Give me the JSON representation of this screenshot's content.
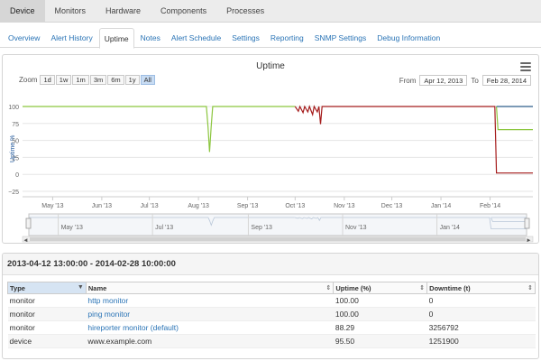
{
  "top_tabs": [
    {
      "label": "Device",
      "active": true
    },
    {
      "label": "Monitors",
      "active": false
    },
    {
      "label": "Hardware",
      "active": false
    },
    {
      "label": "Components",
      "active": false
    },
    {
      "label": "Processes",
      "active": false
    }
  ],
  "sub_tabs": [
    {
      "label": "Overview",
      "active": false
    },
    {
      "label": "Alert History",
      "active": false
    },
    {
      "label": "Uptime",
      "active": true
    },
    {
      "label": "Notes",
      "active": false
    },
    {
      "label": "Alert Schedule",
      "active": false
    },
    {
      "label": "Settings",
      "active": false
    },
    {
      "label": "Reporting",
      "active": false
    },
    {
      "label": "SNMP Settings",
      "active": false
    },
    {
      "label": "Debug Information",
      "active": false
    }
  ],
  "chart": {
    "title": "Uptime",
    "zoom_label": "Zoom",
    "zoom_options": [
      "1d",
      "1w",
      "1m",
      "3m",
      "6m",
      "1y",
      "All"
    ],
    "zoom_selected": "All",
    "from_label": "From",
    "from_value": "Apr 12, 2013",
    "to_label": "To",
    "to_value": "Feb 28, 2014",
    "menu_icon": "hamburger-menu-icon"
  },
  "chart_data": {
    "type": "line",
    "ylabel": "Uptime %",
    "ylim": [
      -25,
      100
    ],
    "yticks": [
      100,
      75,
      50,
      25,
      0,
      -25
    ],
    "xlim": [
      "2013-04-12",
      "2014-02-28"
    ],
    "xticks": [
      "May '13",
      "Jun '13",
      "Jul '13",
      "Aug '13",
      "Sep '13",
      "Oct '13",
      "Nov '13",
      "Dec '13",
      "Jan '14",
      "Feb '14"
    ],
    "navigator_ticks": [
      "May '13",
      "Jul '13",
      "Sep '13",
      "Nov '13",
      "Jan '14"
    ],
    "colors": {
      "green": "#8cc63f",
      "red": "#a51c1c",
      "blue": "#2f5d8a"
    },
    "series": [
      {
        "color": "#8cc63f",
        "points": [
          [
            "2013-04-12",
            100
          ],
          [
            "2013-08-06",
            100
          ],
          [
            "2013-08-07",
            70
          ],
          [
            "2013-08-08",
            33
          ],
          [
            "2013-08-09",
            70
          ],
          [
            "2013-08-10",
            100
          ],
          [
            "2013-10-01",
            100
          ]
        ]
      },
      {
        "color": "#a51c1c",
        "points": [
          [
            "2013-10-01",
            100
          ],
          [
            "2013-10-03",
            93
          ],
          [
            "2013-10-04",
            100
          ],
          [
            "2013-10-06",
            91
          ],
          [
            "2013-10-07",
            100
          ],
          [
            "2013-10-09",
            92
          ],
          [
            "2013-10-10",
            100
          ],
          [
            "2013-10-12",
            88
          ],
          [
            "2013-10-13",
            100
          ],
          [
            "2013-10-15",
            92
          ],
          [
            "2013-10-16",
            100
          ],
          [
            "2013-10-17",
            74
          ],
          [
            "2013-10-18",
            100
          ],
          [
            "2014-02-04",
            100
          ],
          [
            "2014-02-05",
            2
          ],
          [
            "2014-02-28",
            2
          ]
        ]
      },
      {
        "color": "#8cc63f",
        "points": [
          [
            "2014-02-05",
            100
          ],
          [
            "2014-02-06",
            66
          ],
          [
            "2014-02-28",
            66
          ]
        ]
      },
      {
        "color": "#2f5d8a",
        "points": [
          [
            "2014-02-05",
            100
          ],
          [
            "2014-02-28",
            100
          ]
        ]
      }
    ]
  },
  "report": {
    "range_title": "2013-04-12 13:00:00 - 2014-02-28 10:00:00",
    "columns": [
      "Type",
      "Name",
      "Uptime (%)",
      "Downtime (t)"
    ],
    "rows": [
      {
        "type": "monitor",
        "name": "http monitor",
        "name_is_link": true,
        "uptime": "100.00",
        "downtime": "0"
      },
      {
        "type": "monitor",
        "name": "ping monitor",
        "name_is_link": true,
        "uptime": "100.00",
        "downtime": "0"
      },
      {
        "type": "monitor",
        "name": "hireporter monitor (default)",
        "name_is_link": true,
        "uptime": "88.29",
        "downtime": "3256792"
      },
      {
        "type": "device",
        "name": "www.example.com",
        "name_is_link": false,
        "uptime": "95.50",
        "downtime": "1251900"
      }
    ]
  }
}
